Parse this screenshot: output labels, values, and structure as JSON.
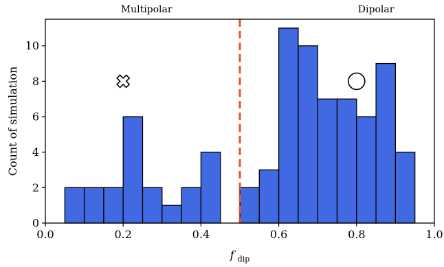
{
  "chart_data": {
    "type": "bar",
    "xlabel_main": "f",
    "xlabel_sub": "dip",
    "ylabel": "Count of simulation",
    "xlim": [
      0,
      1
    ],
    "ylim": [
      0,
      11.5
    ],
    "bin_width": 0.05,
    "bins": [
      {
        "x0": 0.05,
        "value": 2
      },
      {
        "x0": 0.1,
        "value": 2
      },
      {
        "x0": 0.15,
        "value": 2
      },
      {
        "x0": 0.2,
        "value": 6
      },
      {
        "x0": 0.25,
        "value": 2
      },
      {
        "x0": 0.3,
        "value": 1
      },
      {
        "x0": 0.35,
        "value": 2
      },
      {
        "x0": 0.4,
        "value": 4
      },
      {
        "x0": 0.5,
        "value": 2
      },
      {
        "x0": 0.55,
        "value": 3
      },
      {
        "x0": 0.6,
        "value": 11
      },
      {
        "x0": 0.65,
        "value": 10
      },
      {
        "x0": 0.7,
        "value": 7
      },
      {
        "x0": 0.75,
        "value": 7
      },
      {
        "x0": 0.8,
        "value": 6
      },
      {
        "x0": 0.85,
        "value": 9
      },
      {
        "x0": 0.9,
        "value": 4
      }
    ],
    "x_ticks": [
      {
        "value": 0.0,
        "label": "0.0"
      },
      {
        "value": 0.2,
        "label": "0.2"
      },
      {
        "value": 0.4,
        "label": "0.4"
      },
      {
        "value": 0.6,
        "label": "0.6"
      },
      {
        "value": 0.8,
        "label": "0.8"
      },
      {
        "value": 1.0,
        "label": "1.0"
      }
    ],
    "y_ticks": [
      {
        "value": 0,
        "label": "0"
      },
      {
        "value": 2,
        "label": "2"
      },
      {
        "value": 4,
        "label": "4"
      },
      {
        "value": 6,
        "label": "6"
      },
      {
        "value": 8,
        "label": "8"
      },
      {
        "value": 10,
        "label": "10"
      }
    ],
    "threshold": {
      "x": 0.5,
      "style": "dashed",
      "color": "#f4511e"
    },
    "region_labels": {
      "left": "Multipolar",
      "right": "Dipolar"
    },
    "markers": [
      {
        "name": "cross-marker",
        "icon": "cross-icon",
        "x": 0.2,
        "y": 8
      },
      {
        "name": "circle-marker",
        "icon": "circle-icon",
        "x": 0.8,
        "y": 8
      }
    ],
    "bar_color": "#4169e1",
    "grid": false,
    "legend": "none"
  }
}
